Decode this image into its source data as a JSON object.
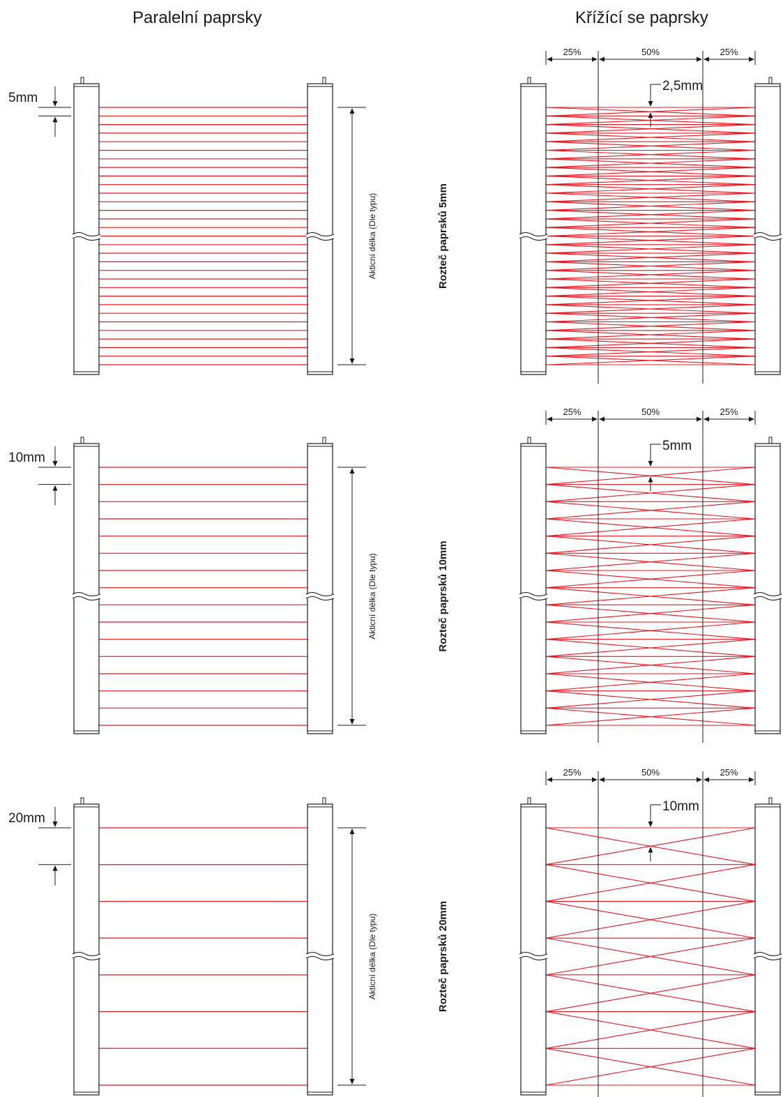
{
  "headers": {
    "left": "Paralelní paprsky",
    "right": "Křížící se paprsky"
  },
  "colors": {
    "beam": "#e8141e",
    "line": "#1a1a1a"
  },
  "rows": [
    {
      "pitch_label": "5mm",
      "cross_label": "2,5mm",
      "row_label": "Rozteč paprsků 5mm",
      "beams": 31,
      "active_label": "Akticní délka (Dle typu)",
      "pct": [
        "25%",
        "50%",
        "25%"
      ]
    },
    {
      "pitch_label": "10mm",
      "cross_label": "5mm",
      "row_label": "Rozteč paprsků 10mm",
      "beams": 16,
      "active_label": "Akticní délka (Dle typu)",
      "pct": [
        "25%",
        "50%",
        "25%"
      ]
    },
    {
      "pitch_label": "20mm",
      "cross_label": "10mm",
      "row_label": "Rozteč paprsků 20mm",
      "beams": 8,
      "active_label": "Akticní délka (Dle typu)",
      "pct": [
        "25%",
        "50%",
        "25%"
      ]
    }
  ]
}
